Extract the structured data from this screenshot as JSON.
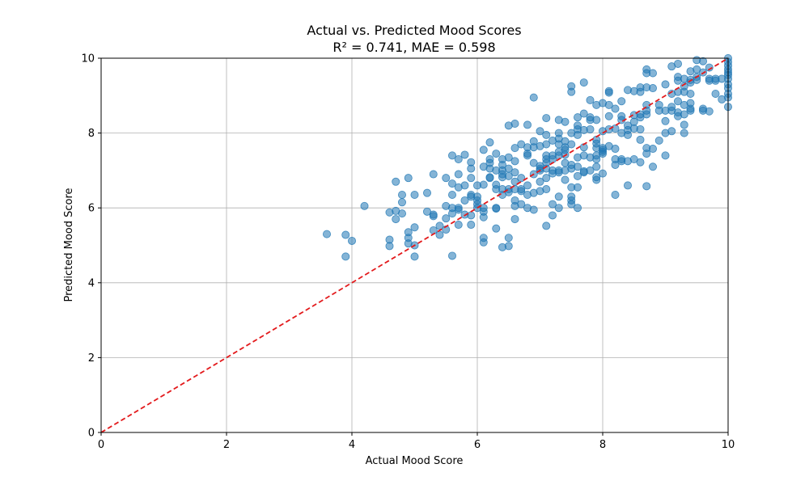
{
  "chart_data": {
    "type": "scatter",
    "title": "Actual vs. Predicted Mood Scores",
    "subtitle": "R² = 0.741, MAE = 0.598",
    "xlabel": "Actual Mood Score",
    "ylabel": "Predicted Mood Score",
    "xlim": [
      0,
      10
    ],
    "ylim": [
      0,
      10
    ],
    "xticks": [
      "0",
      "2",
      "4",
      "6",
      "8",
      "10"
    ],
    "yticks": [
      "0",
      "2",
      "4",
      "6",
      "8",
      "10"
    ],
    "grid": true,
    "point_color": "#1f77b4",
    "point_alpha": 0.55,
    "reference_line": {
      "from": [
        0,
        0
      ],
      "to": [
        10,
        10
      ],
      "color": "#e31a1c",
      "style": "dashed"
    },
    "points": [
      [
        3.6,
        5.3
      ],
      [
        3.9,
        5.28
      ],
      [
        3.9,
        4.7
      ],
      [
        4.0,
        5.12
      ],
      [
        4.2,
        6.05
      ],
      [
        4.6,
        5.88
      ],
      [
        4.6,
        5.15
      ],
      [
        4.6,
        4.98
      ],
      [
        4.7,
        6.7
      ],
      [
        4.7,
        5.92
      ],
      [
        4.7,
        5.7
      ],
      [
        4.8,
        6.35
      ],
      [
        4.8,
        6.15
      ],
      [
        4.8,
        5.85
      ],
      [
        4.9,
        6.8
      ],
      [
        4.9,
        5.35
      ],
      [
        4.9,
        5.2
      ],
      [
        4.9,
        5.05
      ],
      [
        5.0,
        6.35
      ],
      [
        5.0,
        5.48
      ],
      [
        5.0,
        5.0
      ],
      [
        5.0,
        4.7
      ],
      [
        5.2,
        6.4
      ],
      [
        5.2,
        5.9
      ],
      [
        5.3,
        6.9
      ],
      [
        5.3,
        5.82
      ],
      [
        5.3,
        5.78
      ],
      [
        5.3,
        5.4
      ],
      [
        5.4,
        5.52
      ],
      [
        5.4,
        5.28
      ],
      [
        5.5,
        6.8
      ],
      [
        5.5,
        6.05
      ],
      [
        5.5,
        5.72
      ],
      [
        5.5,
        5.42
      ],
      [
        5.6,
        7.4
      ],
      [
        5.6,
        6.65
      ],
      [
        5.6,
        6.35
      ],
      [
        5.6,
        6.0
      ],
      [
        5.6,
        5.85
      ],
      [
        5.6,
        4.72
      ],
      [
        5.7,
        7.3
      ],
      [
        5.7,
        6.9
      ],
      [
        5.7,
        6.55
      ],
      [
        5.7,
        6.0
      ],
      [
        5.7,
        5.95
      ],
      [
        5.7,
        5.55
      ],
      [
        5.8,
        7.42
      ],
      [
        5.8,
        6.6
      ],
      [
        5.8,
        6.2
      ],
      [
        5.8,
        5.82
      ],
      [
        5.9,
        7.22
      ],
      [
        5.9,
        7.05
      ],
      [
        5.9,
        6.8
      ],
      [
        5.9,
        6.35
      ],
      [
        5.9,
        6.3
      ],
      [
        5.9,
        5.8
      ],
      [
        5.9,
        5.55
      ],
      [
        6.0,
        6.6
      ],
      [
        6.0,
        6.3
      ],
      [
        6.0,
        6.2
      ],
      [
        6.0,
        6.1
      ],
      [
        6.0,
        6.0
      ],
      [
        6.1,
        7.55
      ],
      [
        6.1,
        7.1
      ],
      [
        6.1,
        6.62
      ],
      [
        6.1,
        6.0
      ],
      [
        6.1,
        5.9
      ],
      [
        6.1,
        5.75
      ],
      [
        6.1,
        5.2
      ],
      [
        6.1,
        5.08
      ],
      [
        6.2,
        7.75
      ],
      [
        6.2,
        7.3
      ],
      [
        6.2,
        7.2
      ],
      [
        6.2,
        7.05
      ],
      [
        6.2,
        6.82
      ],
      [
        6.2,
        6.8
      ],
      [
        6.3,
        7.45
      ],
      [
        6.3,
        7.0
      ],
      [
        6.3,
        6.62
      ],
      [
        6.3,
        6.5
      ],
      [
        6.3,
        6.0
      ],
      [
        6.3,
        5.98
      ],
      [
        6.3,
        5.45
      ],
      [
        6.4,
        7.3
      ],
      [
        6.4,
        7.15
      ],
      [
        6.4,
        7.0
      ],
      [
        6.4,
        6.9
      ],
      [
        6.4,
        6.82
      ],
      [
        6.4,
        6.5
      ],
      [
        6.4,
        6.35
      ],
      [
        6.4,
        4.95
      ],
      [
        6.5,
        8.2
      ],
      [
        6.5,
        7.35
      ],
      [
        6.5,
        7.05
      ],
      [
        6.5,
        6.85
      ],
      [
        6.5,
        6.5
      ],
      [
        6.5,
        6.42
      ],
      [
        6.5,
        5.2
      ],
      [
        6.5,
        4.98
      ],
      [
        6.6,
        8.25
      ],
      [
        6.6,
        7.6
      ],
      [
        6.6,
        7.25
      ],
      [
        6.6,
        6.95
      ],
      [
        6.6,
        6.7
      ],
      [
        6.6,
        6.5
      ],
      [
        6.6,
        6.2
      ],
      [
        6.6,
        6.05
      ],
      [
        6.6,
        5.7
      ],
      [
        6.7,
        7.7
      ],
      [
        6.7,
        6.8
      ],
      [
        6.7,
        6.5
      ],
      [
        6.7,
        6.45
      ],
      [
        6.7,
        6.1
      ],
      [
        6.8,
        8.22
      ],
      [
        6.8,
        7.62
      ],
      [
        6.8,
        7.45
      ],
      [
        6.8,
        7.4
      ],
      [
        6.8,
        6.6
      ],
      [
        6.8,
        6.35
      ],
      [
        6.8,
        6.0
      ],
      [
        6.9,
        8.95
      ],
      [
        6.9,
        7.78
      ],
      [
        6.9,
        7.62
      ],
      [
        6.9,
        7.2
      ],
      [
        6.9,
        6.9
      ],
      [
        6.9,
        6.4
      ],
      [
        6.9,
        5.95
      ],
      [
        7.0,
        8.05
      ],
      [
        7.0,
        7.65
      ],
      [
        7.0,
        7.12
      ],
      [
        7.0,
        7.05
      ],
      [
        7.0,
        7.0
      ],
      [
        7.0,
        6.7
      ],
      [
        7.0,
        6.45
      ],
      [
        7.1,
        8.4
      ],
      [
        7.1,
        7.95
      ],
      [
        7.1,
        7.7
      ],
      [
        7.1,
        7.4
      ],
      [
        7.1,
        7.3
      ],
      [
        7.1,
        7.2
      ],
      [
        7.1,
        7.05
      ],
      [
        7.1,
        6.8
      ],
      [
        7.1,
        6.5
      ],
      [
        7.1,
        5.52
      ],
      [
        7.2,
        7.8
      ],
      [
        7.2,
        7.4
      ],
      [
        7.2,
        7.3
      ],
      [
        7.2,
        7.0
      ],
      [
        7.2,
        6.92
      ],
      [
        7.2,
        6.1
      ],
      [
        7.2,
        5.8
      ],
      [
        7.3,
        8.35
      ],
      [
        7.3,
        8.0
      ],
      [
        7.3,
        7.85
      ],
      [
        7.3,
        7.7
      ],
      [
        7.3,
        7.5
      ],
      [
        7.3,
        7.4
      ],
      [
        7.3,
        7.0
      ],
      [
        7.3,
        6.95
      ],
      [
        7.3,
        6.3
      ],
      [
        7.3,
        6.0
      ],
      [
        7.4,
        8.3
      ],
      [
        7.4,
        7.78
      ],
      [
        7.4,
        7.62
      ],
      [
        7.4,
        7.55
      ],
      [
        7.4,
        7.42
      ],
      [
        7.4,
        7.2
      ],
      [
        7.4,
        7.0
      ],
      [
        7.4,
        6.75
      ],
      [
        7.5,
        9.25
      ],
      [
        7.5,
        9.1
      ],
      [
        7.5,
        8.0
      ],
      [
        7.5,
        7.7
      ],
      [
        7.5,
        7.15
      ],
      [
        7.5,
        7.05
      ],
      [
        7.5,
        6.55
      ],
      [
        7.5,
        6.3
      ],
      [
        7.5,
        6.2
      ],
      [
        7.5,
        6.1
      ],
      [
        7.6,
        8.42
      ],
      [
        7.6,
        8.2
      ],
      [
        7.6,
        8.1
      ],
      [
        7.6,
        7.95
      ],
      [
        7.6,
        7.35
      ],
      [
        7.6,
        7.1
      ],
      [
        7.6,
        6.85
      ],
      [
        7.6,
        6.55
      ],
      [
        7.6,
        6.0
      ],
      [
        7.7,
        9.35
      ],
      [
        7.7,
        8.52
      ],
      [
        7.7,
        8.08
      ],
      [
        7.7,
        7.62
      ],
      [
        7.7,
        7.4
      ],
      [
        7.7,
        6.98
      ],
      [
        7.7,
        6.95
      ],
      [
        7.8,
        8.88
      ],
      [
        7.8,
        8.42
      ],
      [
        7.8,
        8.35
      ],
      [
        7.8,
        8.1
      ],
      [
        7.8,
        7.35
      ],
      [
        7.8,
        7.0
      ],
      [
        7.9,
        8.75
      ],
      [
        7.9,
        8.35
      ],
      [
        7.9,
        7.82
      ],
      [
        7.9,
        7.72
      ],
      [
        7.9,
        7.6
      ],
      [
        7.9,
        7.4
      ],
      [
        7.9,
        7.3
      ],
      [
        7.9,
        7.1
      ],
      [
        7.9,
        6.82
      ],
      [
        7.9,
        6.75
      ],
      [
        8.0,
        8.8
      ],
      [
        8.0,
        8.05
      ],
      [
        8.0,
        7.6
      ],
      [
        8.0,
        7.55
      ],
      [
        8.0,
        7.5
      ],
      [
        8.0,
        7.45
      ],
      [
        8.0,
        6.92
      ],
      [
        8.1,
        9.12
      ],
      [
        8.1,
        9.08
      ],
      [
        8.1,
        8.75
      ],
      [
        8.1,
        8.45
      ],
      [
        8.1,
        8.1
      ],
      [
        8.1,
        7.65
      ],
      [
        8.2,
        8.65
      ],
      [
        8.2,
        8.12
      ],
      [
        8.2,
        7.58
      ],
      [
        8.2,
        7.3
      ],
      [
        8.2,
        7.15
      ],
      [
        8.2,
        6.35
      ],
      [
        8.3,
        8.85
      ],
      [
        8.3,
        8.45
      ],
      [
        8.3,
        8.35
      ],
      [
        8.3,
        8.0
      ],
      [
        8.3,
        7.3
      ],
      [
        8.3,
        7.25
      ],
      [
        8.4,
        9.15
      ],
      [
        8.4,
        8.2
      ],
      [
        8.4,
        8.08
      ],
      [
        8.4,
        7.95
      ],
      [
        8.4,
        7.25
      ],
      [
        8.4,
        6.6
      ],
      [
        8.5,
        9.12
      ],
      [
        8.5,
        8.48
      ],
      [
        8.5,
        8.3
      ],
      [
        8.5,
        8.12
      ],
      [
        8.5,
        7.3
      ],
      [
        8.6,
        9.22
      ],
      [
        8.6,
        9.1
      ],
      [
        8.6,
        8.5
      ],
      [
        8.6,
        8.42
      ],
      [
        8.6,
        8.1
      ],
      [
        8.6,
        7.82
      ],
      [
        8.6,
        7.22
      ],
      [
        8.7,
        9.7
      ],
      [
        8.7,
        9.6
      ],
      [
        8.7,
        9.22
      ],
      [
        8.7,
        8.75
      ],
      [
        8.7,
        8.6
      ],
      [
        8.7,
        8.5
      ],
      [
        8.7,
        7.6
      ],
      [
        8.7,
        7.45
      ],
      [
        8.7,
        6.58
      ],
      [
        8.8,
        9.6
      ],
      [
        8.8,
        9.2
      ],
      [
        8.8,
        7.58
      ],
      [
        8.8,
        7.1
      ],
      [
        8.9,
        8.75
      ],
      [
        8.9,
        8.6
      ],
      [
        8.9,
        7.8
      ],
      [
        9.0,
        9.3
      ],
      [
        9.0,
        8.6
      ],
      [
        9.0,
        8.32
      ],
      [
        9.0,
        8.0
      ],
      [
        9.0,
        7.4
      ],
      [
        9.1,
        9.78
      ],
      [
        9.1,
        9.05
      ],
      [
        9.1,
        8.7
      ],
      [
        9.1,
        8.6
      ],
      [
        9.1,
        8.05
      ],
      [
        9.2,
        9.85
      ],
      [
        9.2,
        9.5
      ],
      [
        9.2,
        9.4
      ],
      [
        9.2,
        9.1
      ],
      [
        9.2,
        8.85
      ],
      [
        9.2,
        8.55
      ],
      [
        9.2,
        8.45
      ],
      [
        9.3,
        9.45
      ],
      [
        9.3,
        9.25
      ],
      [
        9.3,
        9.1
      ],
      [
        9.3,
        8.75
      ],
      [
        9.3,
        8.5
      ],
      [
        9.3,
        8.22
      ],
      [
        9.3,
        8.0
      ],
      [
        9.4,
        9.65
      ],
      [
        9.4,
        9.42
      ],
      [
        9.4,
        9.35
      ],
      [
        9.4,
        9.05
      ],
      [
        9.4,
        8.8
      ],
      [
        9.4,
        8.65
      ],
      [
        9.4,
        8.6
      ],
      [
        9.5,
        9.95
      ],
      [
        9.5,
        9.7
      ],
      [
        9.5,
        9.5
      ],
      [
        9.5,
        9.42
      ],
      [
        9.6,
        9.92
      ],
      [
        9.6,
        9.62
      ],
      [
        9.6,
        8.65
      ],
      [
        9.6,
        8.6
      ],
      [
        9.7,
        9.75
      ],
      [
        9.7,
        9.45
      ],
      [
        9.7,
        9.4
      ],
      [
        9.7,
        8.58
      ],
      [
        9.8,
        9.45
      ],
      [
        9.8,
        9.4
      ],
      [
        9.8,
        9.05
      ],
      [
        9.9,
        9.45
      ],
      [
        9.9,
        8.9
      ],
      [
        10.0,
        10.0
      ],
      [
        10.0,
        9.9
      ],
      [
        10.0,
        9.8
      ],
      [
        10.0,
        9.7
      ],
      [
        10.0,
        9.62
      ],
      [
        10.0,
        9.55
      ],
      [
        10.0,
        9.45
      ],
      [
        10.0,
        9.3
      ],
      [
        10.0,
        9.2
      ],
      [
        10.0,
        9.05
      ],
      [
        10.0,
        8.95
      ],
      [
        10.0,
        8.7
      ]
    ]
  }
}
